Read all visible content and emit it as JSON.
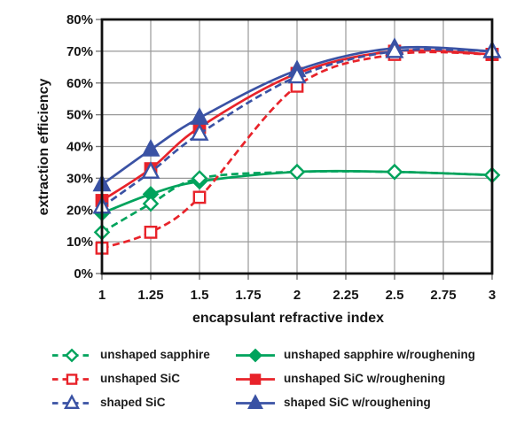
{
  "chart_data": {
    "type": "line",
    "title": "",
    "xlabel": "encapsulant refractive index",
    "ylabel": "extraction efficiency",
    "xlim": [
      1,
      3
    ],
    "ylim": [
      0,
      80
    ],
    "grid": true,
    "legend_position": "bottom-two-columns",
    "x_tick_values": [
      1,
      1.25,
      1.5,
      1.75,
      2,
      2.25,
      2.5,
      2.75,
      3
    ],
    "x_tick_labels": [
      "1",
      "1.25",
      "1.5",
      "1.75",
      "2",
      "2.25",
      "2.5",
      "2.75",
      "3"
    ],
    "y_tick_values": [
      0,
      10,
      20,
      30,
      40,
      50,
      60,
      70,
      80
    ],
    "y_tick_labels": [
      "0%",
      "10%",
      "20%",
      "30%",
      "40%",
      "50%",
      "60%",
      "70%",
      "80%"
    ],
    "x": [
      1,
      1.25,
      1.5,
      2,
      2.5,
      3
    ],
    "series": [
      {
        "name": "unshaped sapphire w/roughening",
        "color": "#00A35C",
        "line": "solid",
        "marker": "diamond",
        "marker_fill": "filled",
        "values": [
          19,
          25,
          29,
          32,
          32,
          31
        ]
      },
      {
        "name": "unshaped sapphire",
        "color": "#00A35C",
        "line": "dashed",
        "marker": "diamond",
        "marker_fill": "open",
        "values": [
          13,
          22,
          30,
          32,
          32,
          31
        ]
      },
      {
        "name": "unshaped SiC",
        "color": "#E8232A",
        "line": "dashed",
        "marker": "square",
        "marker_fill": "open",
        "values": [
          8,
          13,
          24,
          59,
          69,
          69
        ]
      },
      {
        "name": "unshaped SiC w/roughening",
        "color": "#E8232A",
        "line": "solid",
        "marker": "square",
        "marker_fill": "filled",
        "values": [
          23,
          33,
          46,
          63,
          70,
          69
        ]
      },
      {
        "name": "shaped SiC w/roughening",
        "color": "#3A52A4",
        "line": "solid",
        "marker": "triangle",
        "marker_fill": "filled",
        "values": [
          28,
          39,
          49,
          64,
          71,
          70
        ]
      },
      {
        "name": "shaped SiC",
        "color": "#3A52A4",
        "line": "dashed",
        "marker": "triangle",
        "marker_fill": "open",
        "values": [
          21,
          32,
          44,
          62,
          70,
          70
        ]
      }
    ],
    "legend_order": [
      1,
      0,
      2,
      3,
      5,
      4
    ],
    "colors": {
      "sapphire_green": "#00A35C",
      "sic_red": "#E8232A",
      "shaped_blue": "#3A52A4",
      "gridline": "#999999",
      "axis": "#111111",
      "text": "#151515",
      "background": "#ffffff"
    }
  }
}
